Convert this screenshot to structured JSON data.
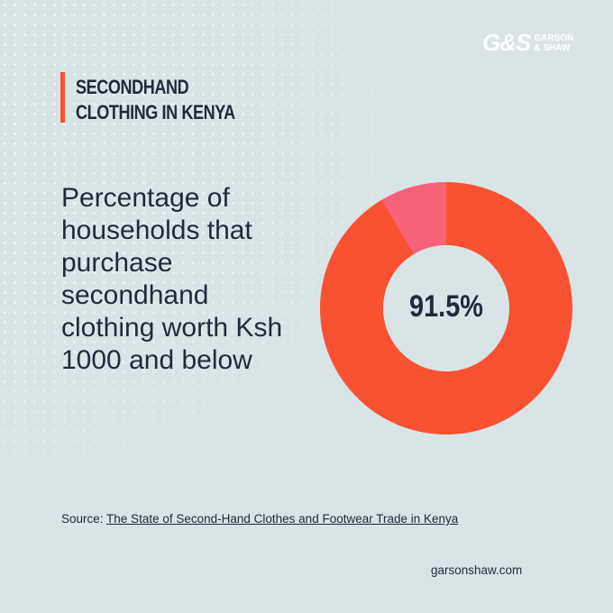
{
  "brand": {
    "mark": "G&S",
    "name": [
      "GARSON",
      "& SHAW"
    ]
  },
  "section_title": [
    "SECONDHAND",
    "CLOTHING IN KENYA"
  ],
  "chart_data": {
    "type": "donut",
    "title": "Percentage of households that purchase secondhand clothing worth Ksh 1000 and below",
    "values": [
      91.5,
      8.5
    ],
    "value_labels": [
      "91.5%",
      null
    ],
    "colors": [
      "#f95233",
      "#f8617a"
    ]
  },
  "source": {
    "label": "Source:",
    "link": "The State of Second-Hand Clothes and Footwear Trade in Kenya"
  },
  "website": "garsonshaw.com"
}
